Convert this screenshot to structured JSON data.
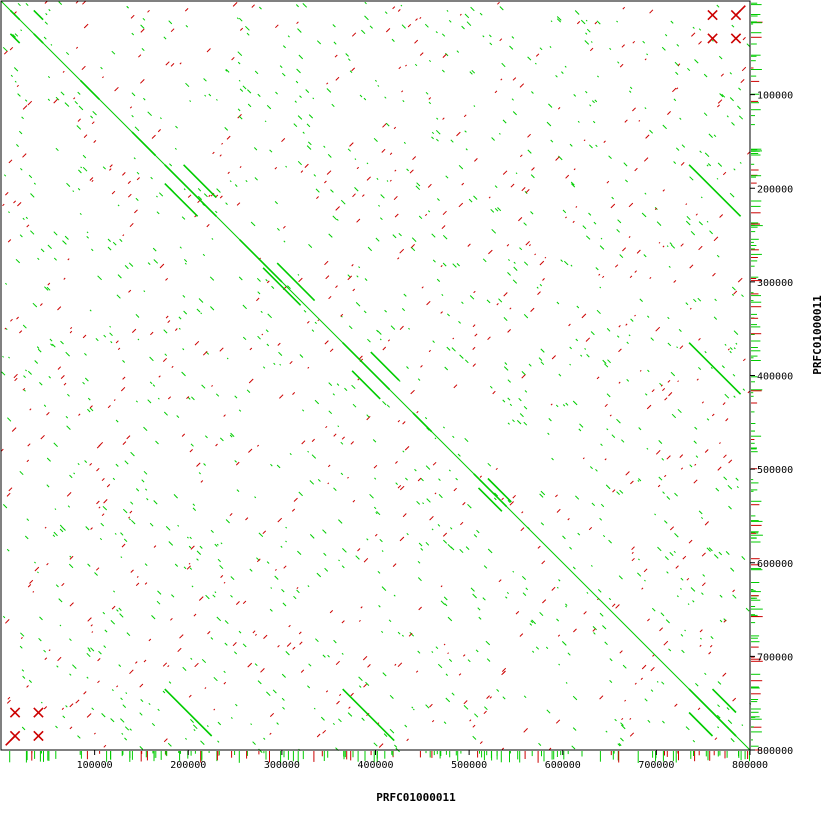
{
  "chart_data": {
    "type": "scatter",
    "subtype": "dotplot",
    "xlabel": "PRFC01000011",
    "ylabel": "PRFC01000011",
    "xlim": [
      0,
      800000
    ],
    "ylim": [
      0,
      800000
    ],
    "y_inverted": true,
    "grid": false,
    "x_ticks": [
      "100000",
      "200000",
      "300000",
      "400000",
      "500000",
      "600000",
      "700000",
      "800000"
    ],
    "y_ticks": [
      "100000",
      "200000",
      "300000",
      "400000",
      "500000",
      "600000",
      "700000",
      "800000"
    ],
    "x_tick_values": [
      100000,
      200000,
      300000,
      400000,
      500000,
      600000,
      700000,
      800000
    ],
    "y_tick_values": [
      100000,
      200000,
      300000,
      400000,
      500000,
      600000,
      700000,
      800000
    ],
    "colors": {
      "forward": "#00cc00",
      "reverse": "#cc0000",
      "frame": "#000000"
    },
    "series": [
      {
        "name": "forward",
        "segments": [
          [
            0,
            0,
            800000,
            800000
          ],
          [
            10000,
            10000,
            20000,
            20000
          ],
          [
            35000,
            35000,
            45000,
            45000
          ],
          [
            10000,
            35000,
            20000,
            45000
          ],
          [
            35000,
            10000,
            45000,
            20000
          ],
          [
            85000,
            85000,
            105000,
            105000
          ],
          [
            140000,
            140000,
            165000,
            165000
          ],
          [
            175000,
            175000,
            230000,
            230000
          ],
          [
            175000,
            195000,
            210000,
            230000
          ],
          [
            195000,
            175000,
            230000,
            210000
          ],
          [
            255000,
            255000,
            300000,
            300000
          ],
          [
            280000,
            285000,
            320000,
            325000
          ],
          [
            295000,
            280000,
            335000,
            320000
          ],
          [
            365000,
            365000,
            415000,
            415000
          ],
          [
            375000,
            395000,
            405000,
            425000
          ],
          [
            395000,
            375000,
            425000,
            405000
          ],
          [
            440000,
            440000,
            460000,
            460000
          ],
          [
            505000,
            505000,
            540000,
            540000
          ],
          [
            510000,
            520000,
            535000,
            545000
          ],
          [
            520000,
            510000,
            545000,
            535000
          ],
          [
            735000,
            735000,
            760000,
            760000
          ],
          [
            760000,
            760000,
            785000,
            785000
          ],
          [
            735000,
            760000,
            760000,
            785000
          ],
          [
            760000,
            735000,
            785000,
            760000
          ],
          [
            175000,
            735000,
            225000,
            785000
          ],
          [
            365000,
            735000,
            420000,
            790000
          ],
          [
            735000,
            175000,
            790000,
            230000
          ],
          [
            735000,
            365000,
            790000,
            420000
          ]
        ]
      },
      {
        "name": "reverse",
        "segments": [
          [
            10000,
            790000,
            20000,
            780000
          ],
          [
            20000,
            790000,
            10000,
            780000
          ],
          [
            35000,
            790000,
            45000,
            780000
          ],
          [
            45000,
            790000,
            35000,
            780000
          ],
          [
            10000,
            765000,
            20000,
            755000
          ],
          [
            20000,
            765000,
            10000,
            755000
          ],
          [
            35000,
            765000,
            45000,
            755000
          ],
          [
            45000,
            765000,
            35000,
            755000
          ],
          [
            755000,
            45000,
            765000,
            35000
          ],
          [
            765000,
            45000,
            755000,
            35000
          ],
          [
            780000,
            45000,
            790000,
            35000
          ],
          [
            790000,
            45000,
            780000,
            35000
          ],
          [
            755000,
            20000,
            765000,
            10000
          ],
          [
            765000,
            20000,
            755000,
            10000
          ],
          [
            780000,
            20000,
            790000,
            10000
          ],
          [
            790000,
            20000,
            780000,
            10000
          ],
          [
            795000,
            5000,
            785000,
            15000
          ],
          [
            5000,
            795000,
            15000,
            785000
          ]
        ]
      }
    ]
  }
}
